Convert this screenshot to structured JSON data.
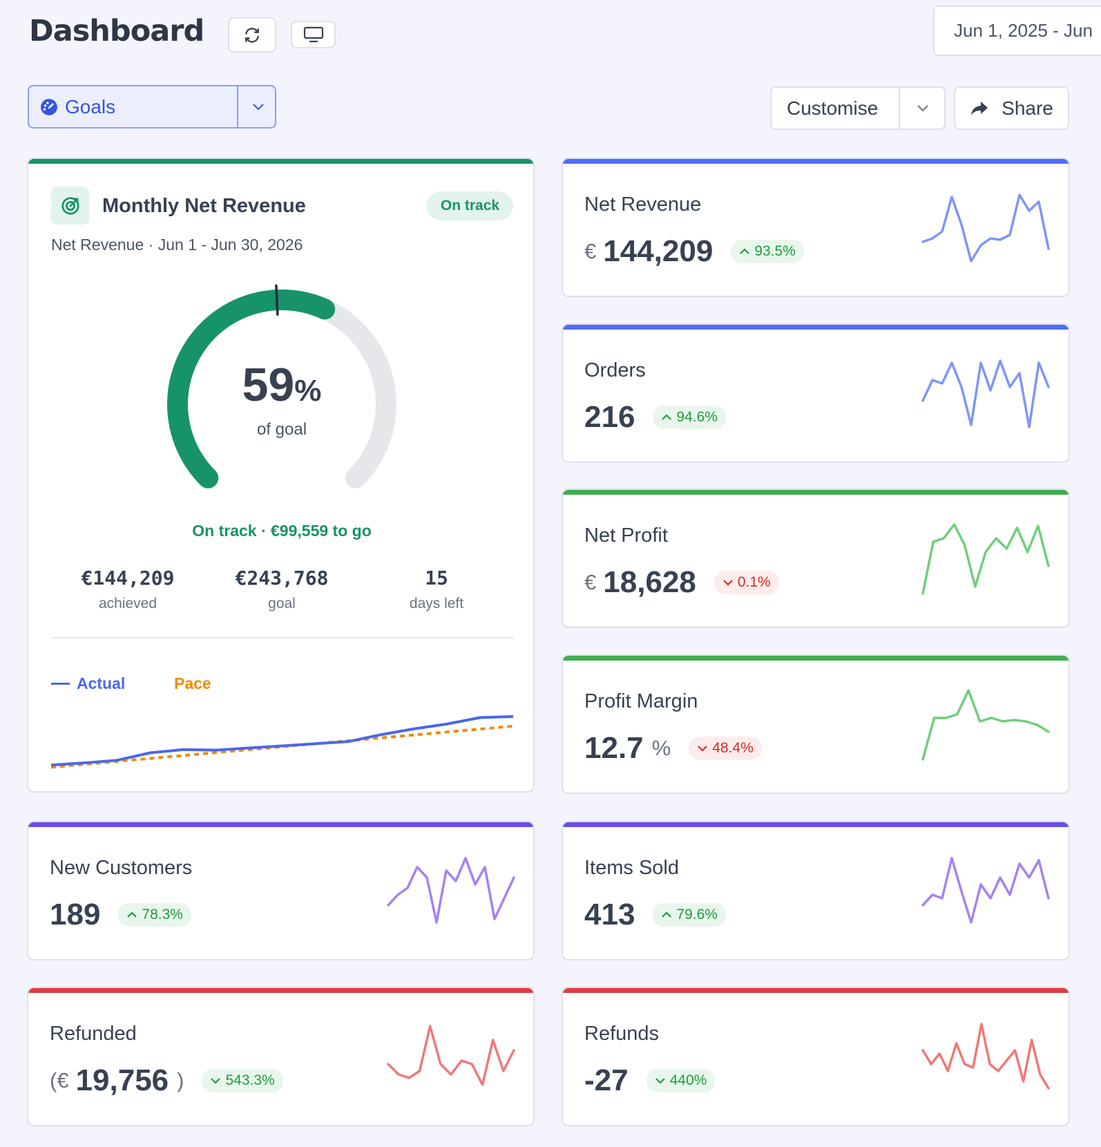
{
  "header": {
    "title": "Dashboard",
    "date_range": "Jun 1, 2025 - Jun"
  },
  "toolbar": {
    "view": "Goals",
    "customise": "Customise",
    "share": "Share"
  },
  "goal_card": {
    "title": "Monthly Net Revenue",
    "status": "On track",
    "subtitle": "Net Revenue · Jun 1 - Jun 30, 2026",
    "percent": 59,
    "percent_unit": "%",
    "gauge_range": [
      0,
      100
    ],
    "pace_marker": 49,
    "caption": "of goal",
    "summary": "On track · €99,559 to go",
    "stats": [
      {
        "value": "€144,209",
        "label": "achieved"
      },
      {
        "value": "€243,768",
        "label": "goal"
      },
      {
        "value": "15",
        "label": "days left"
      }
    ],
    "chart": {
      "ylim": [
        -10,
        100
      ],
      "series": [
        {
          "name": "Actual",
          "color": "#4a67ec",
          "values": [
            0,
            4,
            9,
            23,
            29,
            28,
            32,
            36,
            40,
            44,
            57,
            68,
            77,
            89,
            91
          ]
        },
        {
          "name": "Pace",
          "color": "#f08a00",
          "values": [
            -4,
            73
          ]
        }
      ]
    }
  },
  "spark_ylim": [
    0,
    100
  ],
  "metrics": [
    {
      "title": "Net Revenue",
      "prefix": "€",
      "value": "144,209",
      "change": "93.5%",
      "trend": "up",
      "tone": "good",
      "color": "#4f6ef7",
      "line": "#7f95f6",
      "spark": [
        30,
        35,
        45,
        95,
        55,
        2,
        25,
        35,
        33,
        40,
        98,
        75,
        88,
        20
      ]
    },
    {
      "title": "Orders",
      "value": "216",
      "change": "94.6%",
      "trend": "up",
      "tone": "good",
      "color": "#4f6ef7",
      "line": "#7f95f6",
      "spark": [
        40,
        70,
        65,
        95,
        60,
        5,
        95,
        55,
        98,
        60,
        80,
        2,
        95,
        60
      ]
    },
    {
      "title": "Net Profit",
      "prefix": "€",
      "value": "18,628",
      "change": "0.1%",
      "trend": "down",
      "tone": "bad",
      "color": "#3fae4f",
      "line": "#6fce7b",
      "spark": [
        0,
        75,
        80,
        100,
        70,
        10,
        60,
        80,
        65,
        95,
        60,
        98,
        40
      ]
    },
    {
      "title": "Profit Margin",
      "value": "12.7",
      "suffix": "%",
      "change": "48.4%",
      "trend": "down",
      "tone": "bad",
      "color": "#3fae4f",
      "line": "#6fce7b",
      "spark": [
        0,
        60,
        60,
        65,
        100,
        55,
        60,
        55,
        57,
        55,
        50,
        40
      ]
    },
    {
      "title": "New Customers",
      "value": "189",
      "change": "78.3%",
      "trend": "up",
      "tone": "good",
      "color": "#6b4de6",
      "line": "#a582ef",
      "spark": [
        30,
        45,
        55,
        85,
        70,
        5,
        80,
        65,
        98,
        60,
        85,
        10,
        40,
        70
      ]
    },
    {
      "title": "Items Sold",
      "value": "413",
      "change": "79.6%",
      "trend": "up",
      "tone": "good",
      "color": "#6b4de6",
      "line": "#a582ef",
      "spark": [
        30,
        45,
        40,
        98,
        50,
        5,
        60,
        40,
        70,
        45,
        90,
        70,
        95,
        40
      ]
    },
    {
      "title": "Refunded",
      "prefix": "(€",
      "value": "19,756",
      "suffix": ")",
      "change": "543.3%",
      "trend": "down",
      "tone": "good",
      "color": "#e5393f",
      "line": "#ef7878",
      "spark": [
        40,
        25,
        20,
        30,
        95,
        40,
        25,
        45,
        40,
        10,
        75,
        30,
        60
      ]
    },
    {
      "title": "Refunds",
      "value": "-27",
      "change": "440%",
      "trend": "down",
      "tone": "good",
      "color": "#e5393f",
      "line": "#ef7878",
      "spark": [
        60,
        40,
        55,
        30,
        70,
        40,
        35,
        98,
        40,
        30,
        45,
        60,
        15,
        75,
        25,
        5
      ]
    }
  ]
}
